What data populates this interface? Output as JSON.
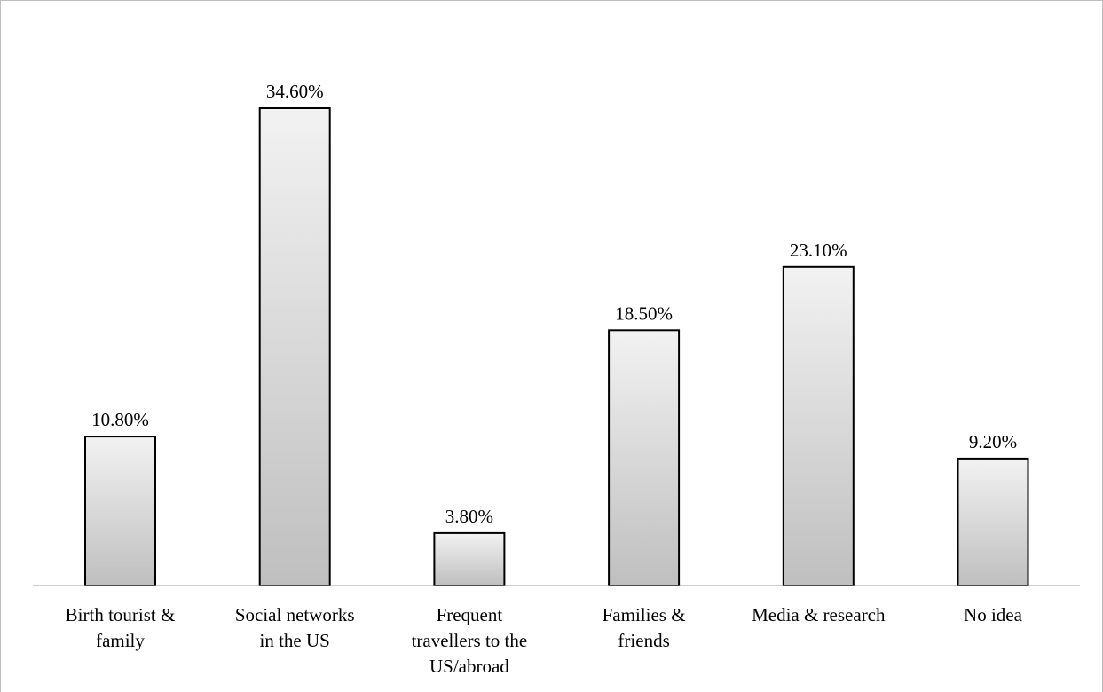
{
  "chart_data": {
    "type": "bar",
    "categories": [
      [
        "Birth tourist &",
        "family"
      ],
      [
        "Social networks",
        "in the US"
      ],
      [
        "Frequent",
        "travellers to the",
        "US/abroad"
      ],
      [
        "Families &",
        "friends"
      ],
      [
        "Media & research"
      ],
      [
        "No idea"
      ]
    ],
    "values": [
      10.8,
      34.6,
      3.8,
      18.5,
      23.1,
      9.2
    ],
    "value_labels": [
      "10.80%",
      "34.60%",
      "3.80%",
      "18.50%",
      "23.10%",
      "9.20%"
    ],
    "unit": "%",
    "title": "",
    "xlabel": "",
    "ylabel": "",
    "grid": false,
    "legend": "none",
    "colors": {
      "bar_top": "#f2f2f2",
      "bar_bottom": "#bfbfbf",
      "bar_stroke": "#000000",
      "axis": "#9a9a9a"
    }
  }
}
